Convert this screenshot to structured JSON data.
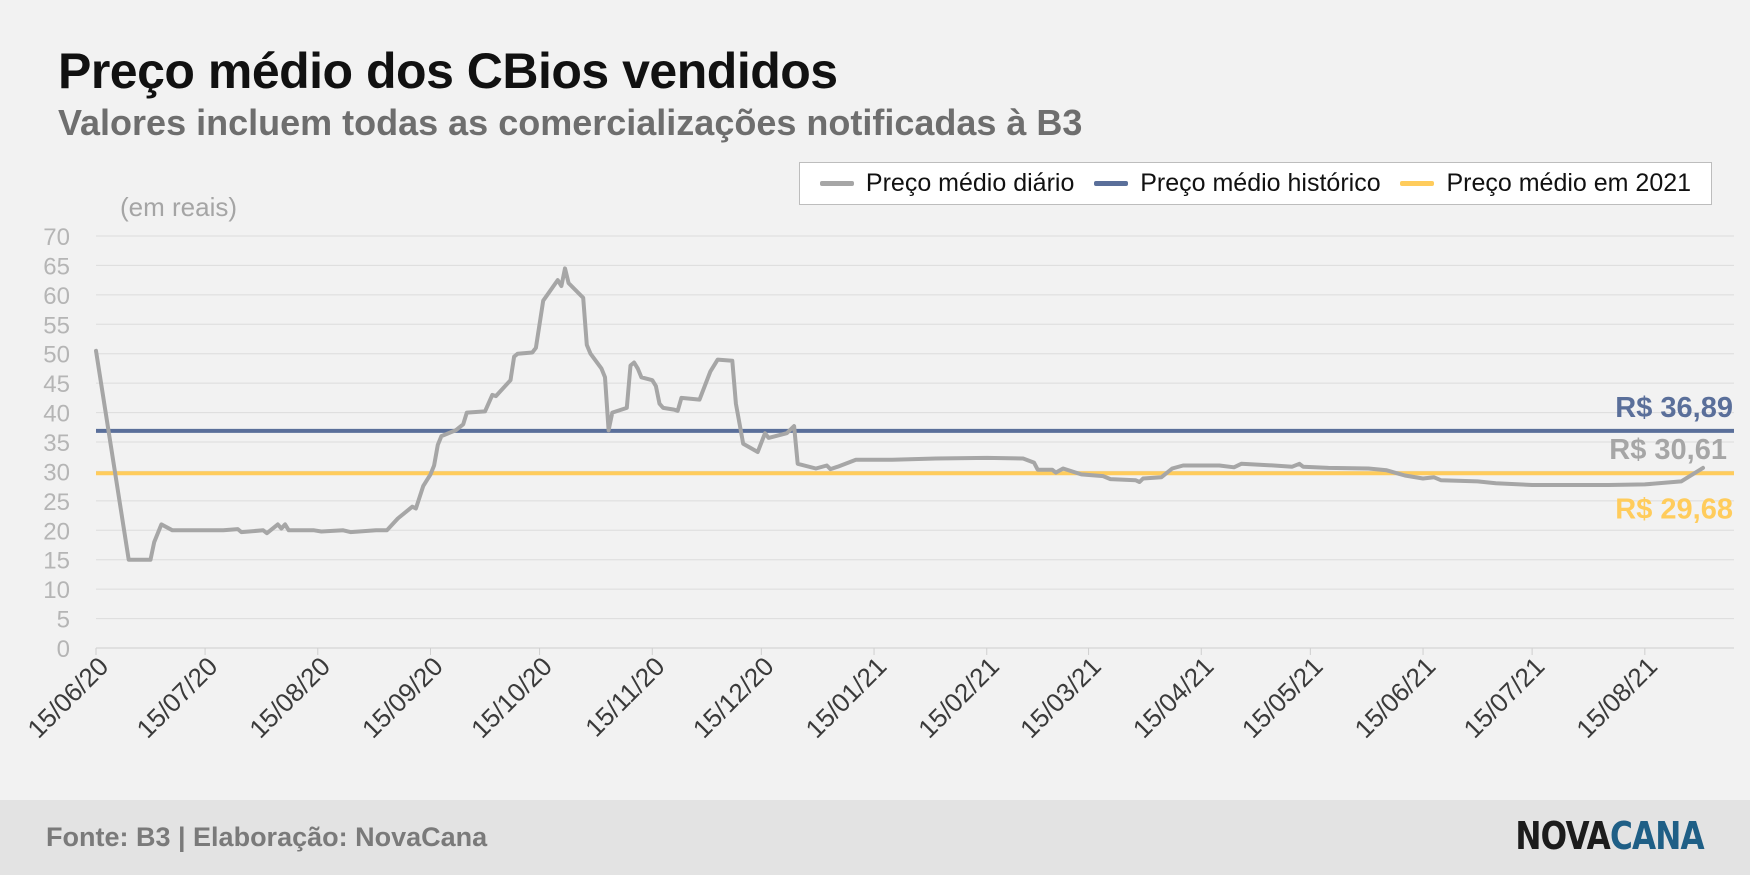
{
  "header": {
    "title": "Preço médio dos CBios vendidos",
    "subtitle": "Valores incluem todas as comercializações notificadas à B3"
  },
  "footer": {
    "source": "Fonte: B3 | Elaboração: NovaCana",
    "logo_part1": "NOVA",
    "logo_part2": "CANA"
  },
  "colors": {
    "daily": "#a6a6a6",
    "historic": "#5a6f9a",
    "avg2021": "#ffcc5c",
    "grid": "#dcdcdc",
    "tick": "#b5b5b5",
    "logo_dark": "#1c1c1c",
    "logo_blue": "#1f5f86"
  },
  "chart_data": {
    "type": "line",
    "title": "Preço médio dos CBios vendidos",
    "subtitle": "Valores incluem todas as comercializações notificadas à B3",
    "unit_label": "(em reais)",
    "ylim": [
      0,
      70
    ],
    "yticks": [
      0,
      5,
      10,
      15,
      20,
      25,
      30,
      35,
      40,
      45,
      50,
      55,
      60,
      65,
      70
    ],
    "xlim": [
      "2020-06-15",
      "2021-08-31"
    ],
    "x_tick_labels": [
      {
        "date": "2020-06-15",
        "label": "15/06/20"
      },
      {
        "date": "2020-07-15",
        "label": "15/07/20"
      },
      {
        "date": "2020-08-15",
        "label": "15/08/20"
      },
      {
        "date": "2020-09-15",
        "label": "15/09/20"
      },
      {
        "date": "2020-10-15",
        "label": "15/10/20"
      },
      {
        "date": "2020-11-15",
        "label": "15/11/20"
      },
      {
        "date": "2020-12-15",
        "label": "15/12/20"
      },
      {
        "date": "2021-01-15",
        "label": "15/01/21"
      },
      {
        "date": "2021-02-15",
        "label": "15/02/21"
      },
      {
        "date": "2021-03-15",
        "label": "15/03/21"
      },
      {
        "date": "2021-04-15",
        "label": "15/04/21"
      },
      {
        "date": "2021-05-15",
        "label": "15/05/21"
      },
      {
        "date": "2021-06-15",
        "label": "15/06/21"
      },
      {
        "date": "2021-07-15",
        "label": "15/07/21"
      },
      {
        "date": "2021-08-15",
        "label": "15/08/21"
      }
    ],
    "grid": true,
    "legend_position": "top-right",
    "series": [
      {
        "name": "Preço médio diário",
        "color": "#a6a6a6",
        "points": [
          [
            "2020-06-15",
            50.5
          ],
          [
            "2020-06-24",
            15
          ],
          [
            "2020-06-30",
            15
          ],
          [
            "2020-07-01",
            18
          ],
          [
            "2020-07-03",
            21
          ],
          [
            "2020-07-06",
            20
          ],
          [
            "2020-07-20",
            20
          ],
          [
            "2020-07-24",
            20.2
          ],
          [
            "2020-07-25",
            19.7
          ],
          [
            "2020-07-31",
            20
          ],
          [
            "2020-08-01",
            19.5
          ],
          [
            "2020-08-04",
            21
          ],
          [
            "2020-08-05",
            20.3
          ],
          [
            "2020-08-06",
            21
          ],
          [
            "2020-08-07",
            20
          ],
          [
            "2020-08-14",
            20
          ],
          [
            "2020-08-16",
            19.8
          ],
          [
            "2020-08-22",
            20
          ],
          [
            "2020-08-24",
            19.7
          ],
          [
            "2020-08-31",
            20
          ],
          [
            "2020-09-03",
            20
          ],
          [
            "2020-09-06",
            22
          ],
          [
            "2020-09-10",
            24
          ],
          [
            "2020-09-11",
            23.7
          ],
          [
            "2020-09-13",
            27.5
          ],
          [
            "2020-09-15",
            29.5
          ],
          [
            "2020-09-16",
            31
          ],
          [
            "2020-09-17",
            34.5
          ],
          [
            "2020-09-18",
            36
          ],
          [
            "2020-09-22",
            37
          ],
          [
            "2020-09-24",
            38
          ],
          [
            "2020-09-25",
            40
          ],
          [
            "2020-09-30",
            40.2
          ],
          [
            "2020-10-02",
            43
          ],
          [
            "2020-10-03",
            42.8
          ],
          [
            "2020-10-07",
            45.5
          ],
          [
            "2020-10-08",
            49.5
          ],
          [
            "2020-10-09",
            50
          ],
          [
            "2020-10-13",
            50.2
          ],
          [
            "2020-10-14",
            51
          ],
          [
            "2020-10-16",
            59
          ],
          [
            "2020-10-20",
            62.5
          ],
          [
            "2020-10-21",
            61.5
          ],
          [
            "2020-10-22",
            64.5
          ],
          [
            "2020-10-23",
            62
          ],
          [
            "2020-10-27",
            59.5
          ],
          [
            "2020-10-28",
            51.5
          ],
          [
            "2020-10-29",
            50
          ],
          [
            "2020-11-01",
            47.5
          ],
          [
            "2020-11-02",
            46
          ],
          [
            "2020-11-03",
            37
          ],
          [
            "2020-11-04",
            40
          ],
          [
            "2020-11-08",
            40.8
          ],
          [
            "2020-11-09",
            48
          ],
          [
            "2020-11-10",
            48.5
          ],
          [
            "2020-11-11",
            47.5
          ],
          [
            "2020-11-12",
            46
          ],
          [
            "2020-11-15",
            45.5
          ],
          [
            "2020-11-16",
            44.5
          ],
          [
            "2020-11-17",
            41.5
          ],
          [
            "2020-11-18",
            40.8
          ],
          [
            "2020-11-21",
            40.5
          ],
          [
            "2020-11-22",
            40.3
          ],
          [
            "2020-11-23",
            42.5
          ],
          [
            "2020-11-28",
            42.2
          ],
          [
            "2020-12-01",
            47
          ],
          [
            "2020-12-03",
            49
          ],
          [
            "2020-12-07",
            48.8
          ],
          [
            "2020-12-08",
            41.5
          ],
          [
            "2020-12-10",
            34.7
          ],
          [
            "2020-12-14",
            33.3
          ],
          [
            "2020-12-16",
            36.5
          ],
          [
            "2020-12-17",
            35.7
          ],
          [
            "2020-12-22",
            36.5
          ],
          [
            "2020-12-24",
            37.7
          ],
          [
            "2020-12-25",
            31.3
          ],
          [
            "2020-12-30",
            30.5
          ],
          [
            "2021-01-02",
            31
          ],
          [
            "2021-01-03",
            30.4
          ],
          [
            "2021-01-05",
            30.8
          ],
          [
            "2021-01-10",
            32
          ],
          [
            "2021-01-15",
            32
          ],
          [
            "2021-01-20",
            32
          ],
          [
            "2021-02-01",
            32.2
          ],
          [
            "2021-02-15",
            32.3
          ],
          [
            "2021-02-25",
            32.2
          ],
          [
            "2021-02-28",
            31.5
          ],
          [
            "2021-03-01",
            30.3
          ],
          [
            "2021-03-05",
            30.3
          ],
          [
            "2021-03-06",
            29.8
          ],
          [
            "2021-03-08",
            30.5
          ],
          [
            "2021-03-13",
            29.5
          ],
          [
            "2021-03-19",
            29.2
          ],
          [
            "2021-03-21",
            28.7
          ],
          [
            "2021-03-28",
            28.5
          ],
          [
            "2021-03-29",
            28.2
          ],
          [
            "2021-03-30",
            28.8
          ],
          [
            "2021-04-04",
            29
          ],
          [
            "2021-04-07",
            30.5
          ],
          [
            "2021-04-10",
            31
          ],
          [
            "2021-04-20",
            31
          ],
          [
            "2021-04-24",
            30.7
          ],
          [
            "2021-04-26",
            31.3
          ],
          [
            "2021-05-05",
            31
          ],
          [
            "2021-05-10",
            30.8
          ],
          [
            "2021-05-12",
            31.3
          ],
          [
            "2021-05-13",
            30.8
          ],
          [
            "2021-05-20",
            30.6
          ],
          [
            "2021-05-31",
            30.5
          ],
          [
            "2021-06-05",
            30.2
          ],
          [
            "2021-06-10",
            29.3
          ],
          [
            "2021-06-15",
            28.8
          ],
          [
            "2021-06-18",
            29
          ],
          [
            "2021-06-20",
            28.5
          ],
          [
            "2021-06-30",
            28.3
          ],
          [
            "2021-07-05",
            28
          ],
          [
            "2021-07-15",
            27.7
          ],
          [
            "2021-07-25",
            27.7
          ],
          [
            "2021-08-05",
            27.7
          ],
          [
            "2021-08-15",
            27.8
          ],
          [
            "2021-08-25",
            28.3
          ],
          [
            "2021-08-31",
            30.6
          ]
        ]
      },
      {
        "name": "Preço médio histórico",
        "color": "#5a6f9a",
        "constant": 36.89,
        "end_label": "R$ 36,89"
      },
      {
        "name": "Preço médio em 2021",
        "color": "#ffcc5c",
        "constant": 29.68,
        "end_label": "R$ 29,68"
      }
    ],
    "last_value_label": "R$ 30,61",
    "last_value": 30.61
  }
}
